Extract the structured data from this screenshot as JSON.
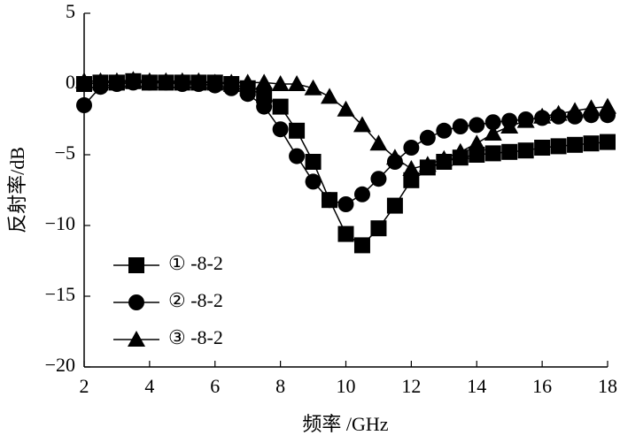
{
  "chart_data": {
    "type": "line",
    "xlabel": "频率 /GHz",
    "ylabel": "反射率/dB",
    "x": [
      2,
      2.5,
      3,
      3.5,
      4,
      4.5,
      5,
      5.5,
      6,
      6.5,
      7,
      7.5,
      8,
      8.5,
      9,
      9.5,
      10,
      10.5,
      11,
      11.5,
      12,
      12.5,
      13,
      13.5,
      14,
      14.5,
      15,
      15.5,
      16,
      16.5,
      17,
      17.5,
      18
    ],
    "series": [
      {
        "name": "① -8-2",
        "color": "#000000",
        "marker": "square",
        "values": [
          0,
          0.1,
          0.1,
          0.2,
          0.1,
          0.1,
          0.1,
          0.1,
          0.1,
          0,
          -0.3,
          -0.8,
          -1.6,
          -3.3,
          -5.5,
          -8.2,
          -10.6,
          -11.4,
          -10.2,
          -8.6,
          -6.8,
          -5.9,
          -5.5,
          -5.2,
          -5.0,
          -4.9,
          -4.8,
          -4.7,
          -4.5,
          -4.4,
          -4.3,
          -4.2,
          -4.1
        ]
      },
      {
        "name": "② -8-2",
        "color": "#000000",
        "marker": "circle",
        "values": [
          -1.5,
          -0.2,
          0,
          0.1,
          0.1,
          0.1,
          0,
          0,
          -0.1,
          -0.3,
          -0.7,
          -1.6,
          -3.2,
          -5.1,
          -6.9,
          -8.2,
          -8.5,
          -7.8,
          -6.7,
          -5.5,
          -4.5,
          -3.8,
          -3.3,
          -3.0,
          -2.9,
          -2.7,
          -2.6,
          -2.5,
          -2.4,
          -2.3,
          -2.3,
          -2.2,
          -2.2
        ]
      },
      {
        "name": "③ -8-2",
        "color": "#000000",
        "marker": "triangle",
        "values": [
          0.2,
          0.2,
          0.2,
          0.3,
          0.2,
          0.2,
          0.2,
          0.2,
          0.1,
          0.1,
          0.1,
          0.1,
          0,
          0,
          -0.3,
          -0.9,
          -1.8,
          -2.9,
          -4.2,
          -5.2,
          -6.0,
          -5.7,
          -5.3,
          -4.8,
          -4.2,
          -3.5,
          -3.0,
          -2.6,
          -2.3,
          -2.1,
          -1.9,
          -1.7,
          -1.6
        ]
      }
    ],
    "xlim": [
      2,
      18
    ],
    "xticks": [
      2,
      4,
      6,
      8,
      10,
      12,
      14,
      16,
      18
    ],
    "ylim": [
      -20,
      5
    ],
    "yticks": [
      {
        "value": -20,
        "label": "−20"
      },
      {
        "value": -15,
        "label": "−15"
      },
      {
        "value": -10,
        "label": "−10"
      },
      {
        "value": -5,
        "label": "−5"
      },
      0,
      5
    ],
    "legend": "lower-left"
  }
}
